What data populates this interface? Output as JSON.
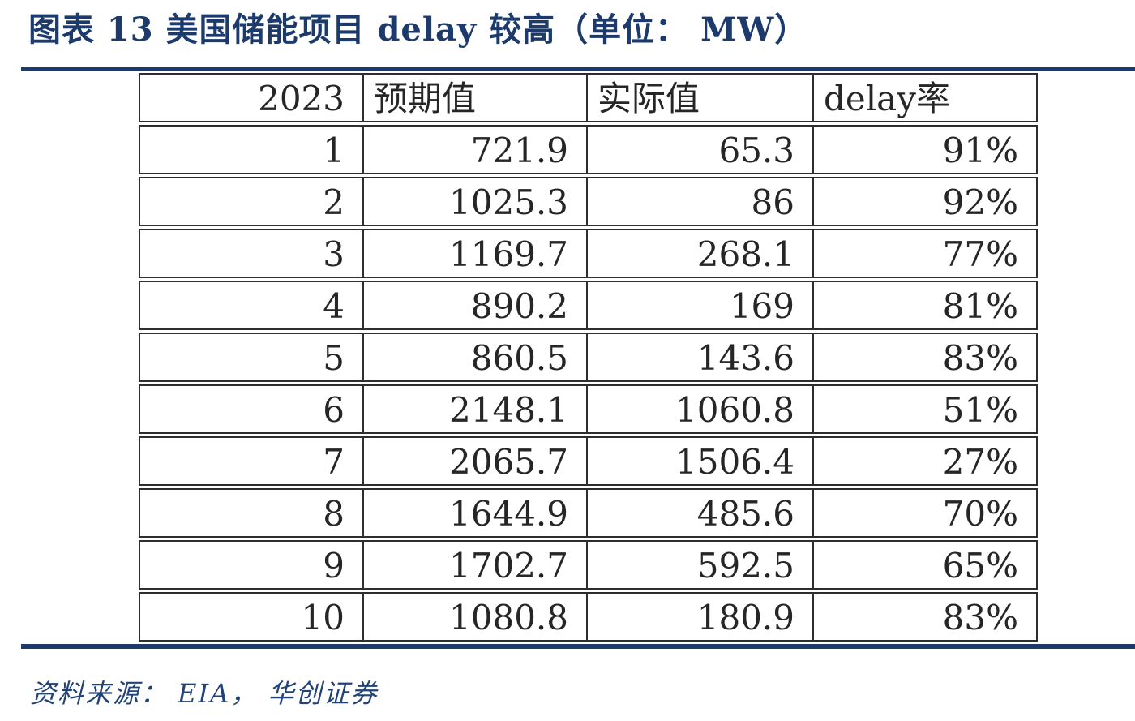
{
  "figure": {
    "title": "图表 13  美国储能项目 delay 较高（单位： MW）",
    "source": "资料来源： EIA， 华创证券"
  },
  "colors": {
    "accent_navy": "#1d3a6d",
    "table_border": "#2e2e2e",
    "table_text": "#262626",
    "source_blue": "#22437a"
  },
  "table": {
    "headers": [
      "2023",
      "预期值",
      "实际值",
      "delay率"
    ],
    "rows": [
      [
        "1",
        "721.9",
        "65.3",
        "91%"
      ],
      [
        "2",
        "1025.3",
        "86",
        "92%"
      ],
      [
        "3",
        "1169.7",
        "268.1",
        "77%"
      ],
      [
        "4",
        "890.2",
        "169",
        "81%"
      ],
      [
        "5",
        "860.5",
        "143.6",
        "83%"
      ],
      [
        "6",
        "2148.1",
        "1060.8",
        "51%"
      ],
      [
        "7",
        "2065.7",
        "1506.4",
        "27%"
      ],
      [
        "8",
        "1644.9",
        "485.6",
        "70%"
      ],
      [
        "9",
        "1702.7",
        "592.5",
        "65%"
      ],
      [
        "10",
        "1080.8",
        "180.9",
        "83%"
      ]
    ]
  },
  "chart_data": {
    "type": "table",
    "title": "图表 13 美国储能项目 delay 较高（单位：MW）",
    "unit": "MW",
    "columns": [
      "2023",
      "预期值",
      "实际值",
      "delay率"
    ],
    "x": [
      1,
      2,
      3,
      4,
      5,
      6,
      7,
      8,
      9,
      10
    ],
    "series": [
      {
        "name": "预期值",
        "values": [
          721.9,
          1025.3,
          1169.7,
          890.2,
          860.5,
          2148.1,
          2065.7,
          1644.9,
          1702.7,
          1080.8
        ]
      },
      {
        "name": "实际值",
        "values": [
          65.3,
          86,
          268.1,
          169,
          143.6,
          1060.8,
          1506.4,
          485.6,
          592.5,
          180.9
        ]
      },
      {
        "name": "delay率",
        "values": [
          "91%",
          "92%",
          "77%",
          "81%",
          "83%",
          "51%",
          "27%",
          "70%",
          "65%",
          "83%"
        ]
      }
    ],
    "source": "资料来源：EIA，华创证券"
  }
}
